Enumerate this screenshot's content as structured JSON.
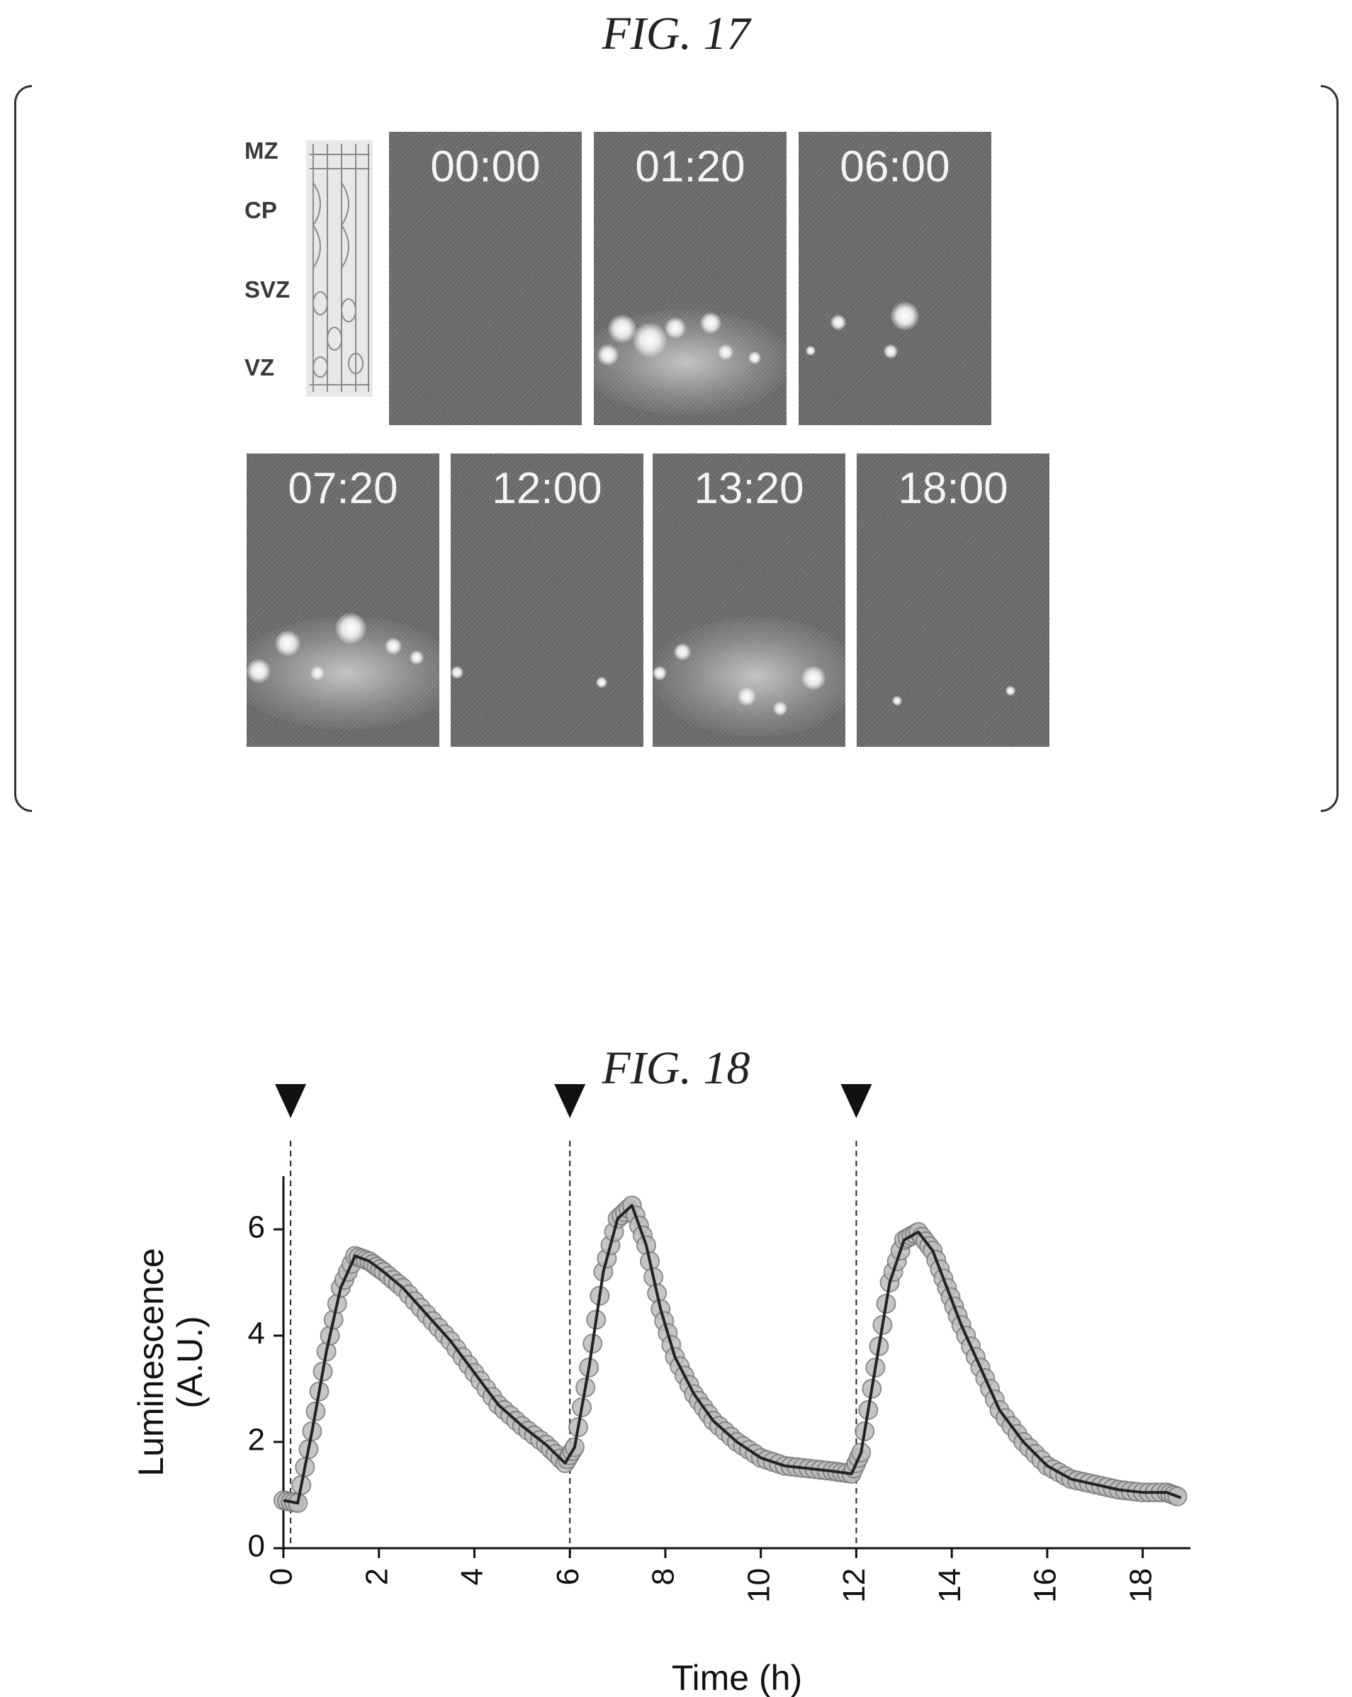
{
  "fig17": {
    "title": "FIG. 17",
    "zones": [
      "MZ",
      "CP",
      "SVZ",
      "VZ"
    ],
    "timepoints_row1": [
      "00:00",
      "01:20",
      "06:00"
    ],
    "timepoints_row2": [
      "07:20",
      "12:00",
      "13:20",
      "18:00"
    ]
  },
  "fig18": {
    "title": "FIG. 18"
  },
  "chart_data": {
    "type": "line",
    "xlabel": "Time (h)",
    "ylabel": "Luminescence (A.U.)",
    "ylabel_lines": [
      "Luminescence",
      "(A.U.)"
    ],
    "xlim": [
      0,
      19
    ],
    "ylim": [
      0,
      7
    ],
    "xticks": [
      0,
      2,
      4,
      6,
      8,
      10,
      12,
      14,
      16,
      18
    ],
    "yticks": [
      0,
      2,
      4,
      6
    ],
    "stimulus_times": [
      0.15,
      6,
      12
    ],
    "series": [
      {
        "x": [
          0,
          0.3,
          0.6,
          0.9,
          1.2,
          1.5,
          1.8,
          2.1,
          2.5,
          3.0,
          3.5,
          4.0,
          4.5,
          5.0,
          5.5,
          5.9,
          6.1,
          6.4,
          6.7,
          7.0,
          7.3,
          7.6,
          7.9,
          8.2,
          8.6,
          9.0,
          9.5,
          10.0,
          10.5,
          11.0,
          11.5,
          11.9,
          12.1,
          12.4,
          12.7,
          13.0,
          13.3,
          13.6,
          13.9,
          14.2,
          14.6,
          15.0,
          15.5,
          16.0,
          16.5,
          17.0,
          17.5,
          18.0,
          18.5,
          18.8
        ],
        "y": [
          0.9,
          0.85,
          2.2,
          3.7,
          4.9,
          5.5,
          5.4,
          5.2,
          4.9,
          4.4,
          3.9,
          3.3,
          2.7,
          2.3,
          1.95,
          1.6,
          1.9,
          3.4,
          5.2,
          6.2,
          6.45,
          5.7,
          4.5,
          3.6,
          2.9,
          2.4,
          2.0,
          1.7,
          1.55,
          1.5,
          1.45,
          1.4,
          1.8,
          3.4,
          5.0,
          5.8,
          5.95,
          5.6,
          4.9,
          4.2,
          3.4,
          2.6,
          2.0,
          1.55,
          1.3,
          1.2,
          1.1,
          1.05,
          1.05,
          0.95
        ]
      }
    ]
  }
}
